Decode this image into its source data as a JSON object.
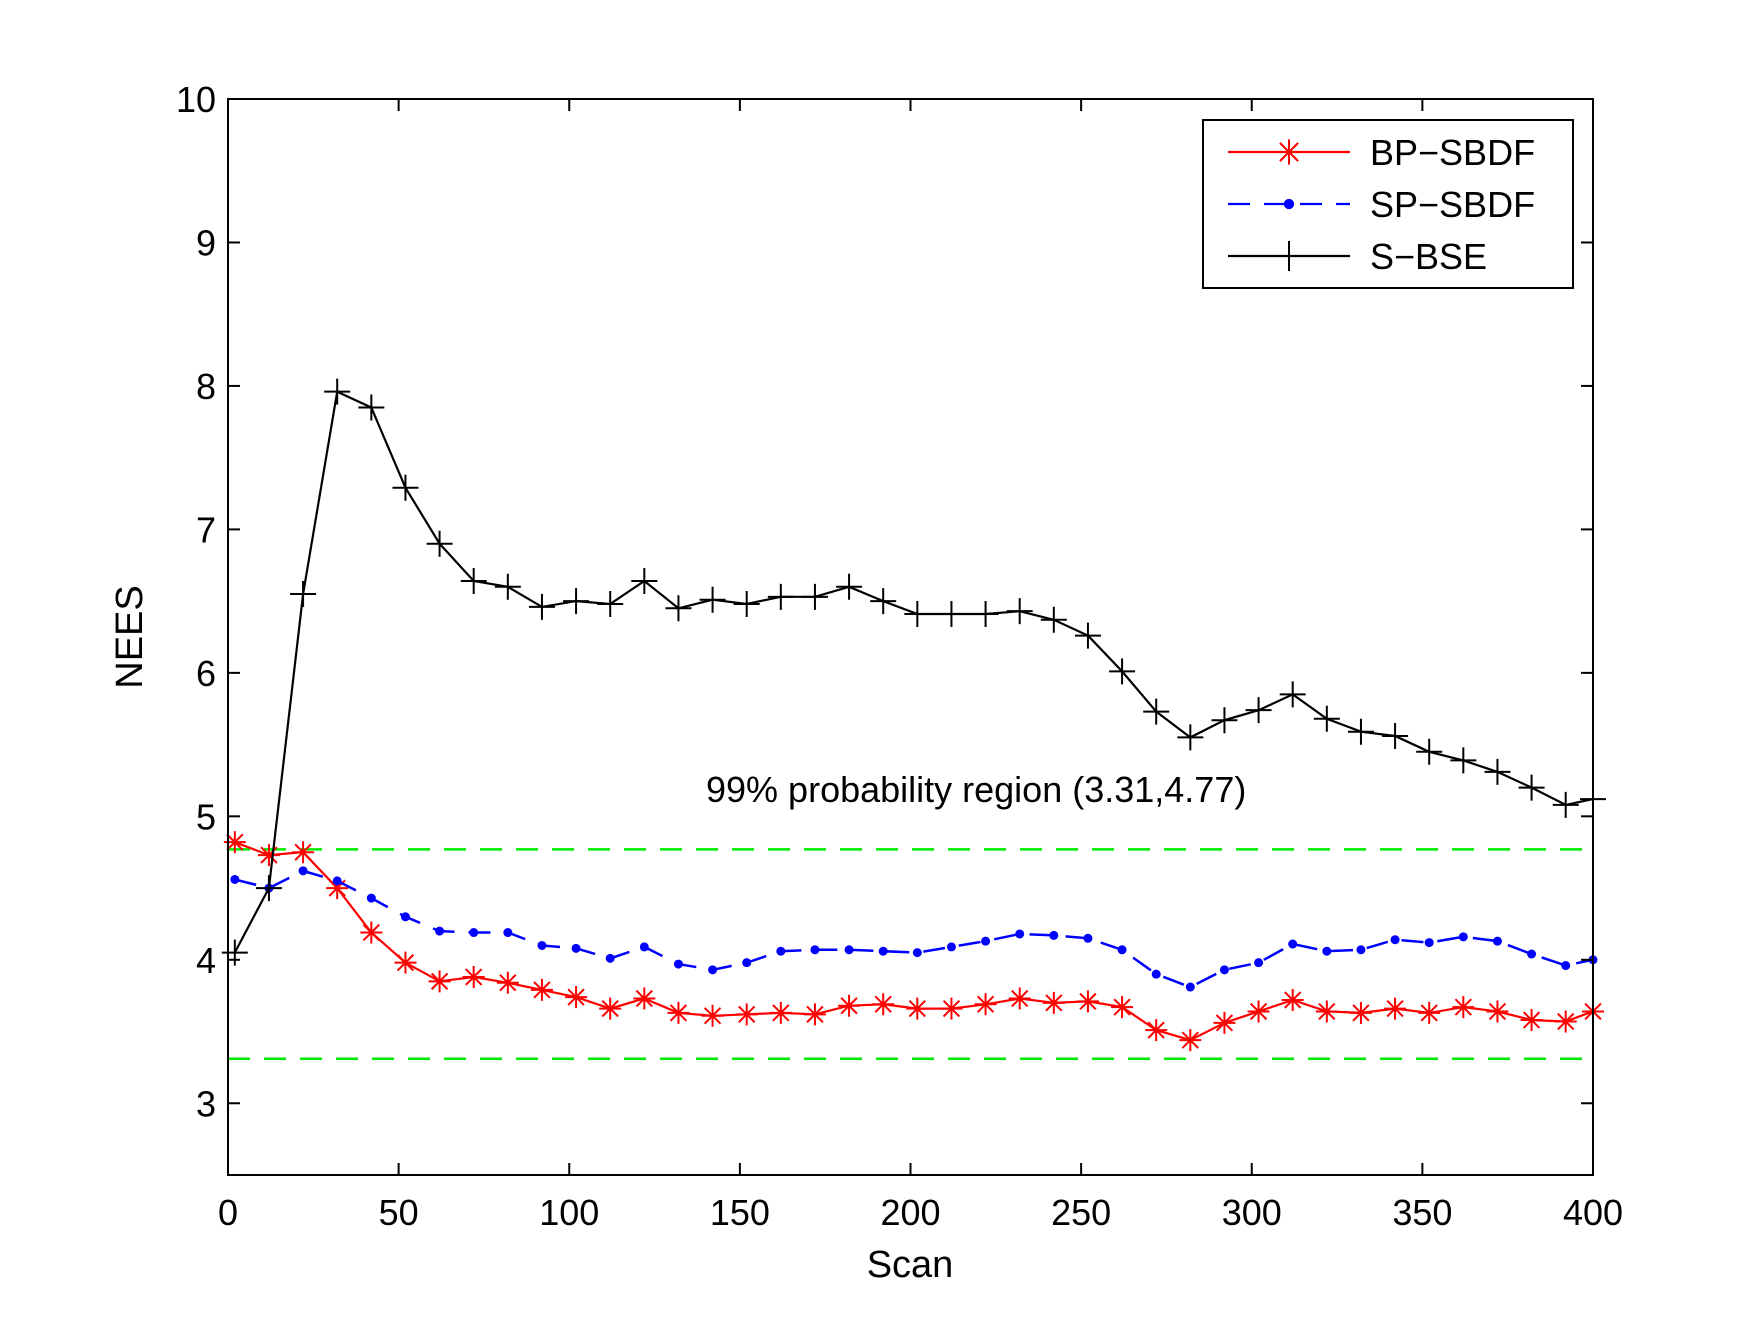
{
  "chart_data": {
    "type": "line",
    "title": "",
    "xlabel": "Scan",
    "ylabel": "NEES",
    "xlim": [
      0,
      400
    ],
    "ylim": [
      2.5,
      10
    ],
    "xticks": [
      0,
      50,
      100,
      150,
      200,
      250,
      300,
      350,
      400
    ],
    "yticks": [
      3,
      4,
      5,
      6,
      7,
      8,
      9,
      10
    ],
    "xtick_labels": [
      "0",
      "50",
      "100",
      "150",
      "200",
      "250",
      "300",
      "350",
      "400"
    ],
    "ytick_labels": [
      "3",
      "4",
      "5",
      "6",
      "7",
      "8",
      "9",
      "10"
    ],
    "grid": false,
    "legend_position": "top-right",
    "annotation": "99% probability region (3.31,4.77)",
    "x": [
      2,
      12,
      22,
      32,
      42,
      52,
      62,
      72,
      82,
      92,
      102,
      112,
      122,
      132,
      142,
      152,
      162,
      172,
      182,
      192,
      202,
      212,
      222,
      232,
      242,
      252,
      262,
      272,
      282,
      292,
      302,
      312,
      322,
      332,
      342,
      352,
      362,
      372,
      382,
      392,
      400
    ],
    "series": [
      {
        "name": "BP−SBDF",
        "color": "#ff0000",
        "line_style": "solid",
        "marker": "asterisk",
        "values": [
          4.82,
          4.73,
          4.75,
          4.5,
          4.19,
          3.98,
          3.85,
          3.88,
          3.84,
          3.79,
          3.74,
          3.66,
          3.73,
          3.63,
          3.61,
          3.62,
          3.63,
          3.62,
          3.68,
          3.69,
          3.66,
          3.66,
          3.69,
          3.73,
          3.7,
          3.71,
          3.67,
          3.51,
          3.44,
          3.56,
          3.64,
          3.72,
          3.64,
          3.63,
          3.66,
          3.63,
          3.67,
          3.64,
          3.58,
          3.57,
          3.64
        ]
      },
      {
        "name": "SP−SBDF",
        "color": "#0000ff",
        "line_style": "dashed",
        "marker": "dot",
        "values": [
          4.56,
          4.5,
          4.62,
          4.55,
          4.43,
          4.3,
          4.2,
          4.19,
          4.19,
          4.1,
          4.08,
          4.01,
          4.09,
          3.97,
          3.93,
          3.98,
          4.06,
          4.07,
          4.07,
          4.06,
          4.05,
          4.09,
          4.13,
          4.18,
          4.17,
          4.15,
          4.07,
          3.9,
          3.81,
          3.93,
          3.98,
          4.11,
          4.06,
          4.07,
          4.14,
          4.12,
          4.16,
          4.13,
          4.04,
          3.96,
          4.0
        ]
      },
      {
        "name": "S−BSE",
        "color": "#000000",
        "line_style": "solid",
        "marker": "plus",
        "values": [
          4.05,
          4.5,
          6.55,
          7.96,
          7.85,
          7.29,
          6.9,
          6.64,
          6.6,
          6.46,
          6.5,
          6.48,
          6.64,
          6.45,
          6.51,
          6.48,
          6.53,
          6.53,
          6.6,
          6.5,
          6.41,
          6.41,
          6.41,
          6.43,
          6.37,
          6.26,
          6.01,
          5.73,
          5.55,
          5.67,
          5.74,
          5.85,
          5.68,
          5.59,
          5.56,
          5.45,
          5.39,
          5.31,
          5.2,
          5.08,
          5.12
        ]
      }
    ],
    "reference_lines": [
      {
        "name": "upper-bound",
        "y": 4.77,
        "color": "#00ee00",
        "line_style": "dashed"
      },
      {
        "name": "lower-bound",
        "y": 3.31,
        "color": "#00ee00",
        "line_style": "dashed"
      }
    ]
  }
}
